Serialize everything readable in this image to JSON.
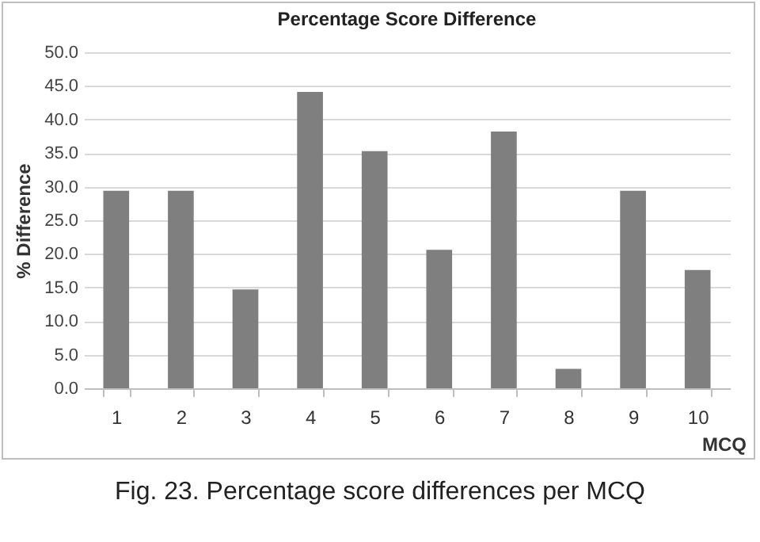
{
  "chart_data": {
    "type": "bar",
    "title": "Percentage Score Difference",
    "xlabel": "MCQ",
    "ylabel": "% Difference",
    "categories": [
      "1",
      "2",
      "3",
      "4",
      "5",
      "6",
      "7",
      "8",
      "9",
      "10"
    ],
    "values": [
      29.4,
      29.4,
      14.7,
      44.1,
      35.3,
      20.6,
      38.2,
      2.9,
      29.4,
      17.6
    ],
    "color": "#7f7f7f",
    "ylim": [
      0,
      50
    ],
    "yticks": [
      {
        "value": 0,
        "label": "0.0"
      },
      {
        "value": 5,
        "label": "5.0"
      },
      {
        "value": 10,
        "label": "10.0"
      },
      {
        "value": 15,
        "label": "15.0"
      },
      {
        "value": 20,
        "label": "20.0"
      },
      {
        "value": 25,
        "label": "25.0"
      },
      {
        "value": 30,
        "label": "30.0"
      },
      {
        "value": 35,
        "label": "35.0"
      },
      {
        "value": 40,
        "label": "40.0"
      },
      {
        "value": 45,
        "label": "45.0"
      },
      {
        "value": 50,
        "label": "50.0"
      }
    ],
    "grid": "y",
    "annotations": [
      "Fig. 23. Percentage score differences per MCQ"
    ]
  }
}
